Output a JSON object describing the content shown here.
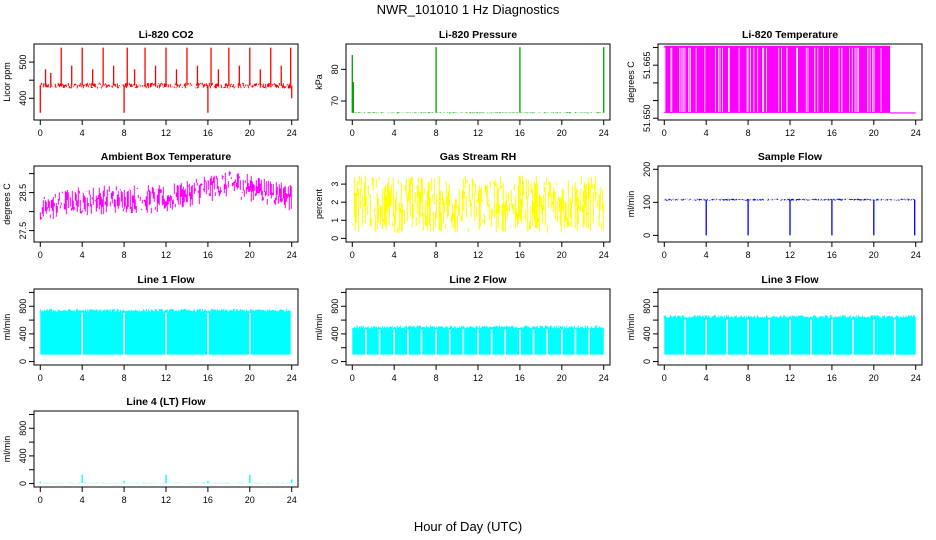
{
  "figure": {
    "title": "NWR_101010  1 Hz Diagnostics",
    "xlabel": "Hour of Day (UTC)"
  },
  "chart_data": [
    {
      "type": "line",
      "title": "Li-820 CO2",
      "ylabel": "Licor ppm",
      "color": "#ff0000",
      "xlim": [
        -0.6,
        24.6
      ],
      "ylim": [
        340,
        550
      ],
      "x_ticks": [
        0,
        4,
        8,
        12,
        16,
        20,
        24
      ],
      "y_ticks": [
        400,
        450,
        500
      ],
      "y_tick_labels": [
        "400",
        "",
        "500"
      ],
      "series": [
        {
          "baseline": 435,
          "noise": 8,
          "spikes": [
            [
              0.0,
              360
            ],
            [
              0.5,
              480
            ],
            [
              1.0,
              470
            ],
            [
              2.0,
              540
            ],
            [
              3.0,
              490
            ],
            [
              4.0,
              540
            ],
            [
              5.0,
              480
            ],
            [
              6.0,
              540
            ],
            [
              7.0,
              490
            ],
            [
              8.0,
              360
            ],
            [
              8.3,
              540
            ],
            [
              9.0,
              480
            ],
            [
              10.0,
              540
            ],
            [
              11.0,
              490
            ],
            [
              12.0,
              540
            ],
            [
              13.0,
              480
            ],
            [
              14.0,
              540
            ],
            [
              15.0,
              490
            ],
            [
              16.0,
              360
            ],
            [
              16.3,
              540
            ],
            [
              17.0,
              480
            ],
            [
              18.0,
              540
            ],
            [
              19.0,
              490
            ],
            [
              20.0,
              540
            ],
            [
              21.0,
              480
            ],
            [
              22.0,
              540
            ],
            [
              23.0,
              490
            ],
            [
              23.9,
              540
            ],
            [
              24.0,
              400
            ]
          ]
        }
      ]
    },
    {
      "type": "line",
      "title": "Li-820 Pressure",
      "ylabel": "kPa",
      "color": "#00a000",
      "xlim": [
        -0.6,
        24.6
      ],
      "ylim": [
        64,
        88
      ],
      "x_ticks": [
        0,
        4,
        8,
        12,
        16,
        20,
        24
      ],
      "y_ticks": [
        70,
        80
      ],
      "y_tick_labels": [
        "70",
        "80"
      ],
      "series": [
        {
          "baseline": 66.3,
          "noise": 0.15,
          "spikes": [
            [
              0.0,
              84.5
            ],
            [
              0.1,
              76
            ],
            [
              8.0,
              87
            ],
            [
              16.0,
              87
            ],
            [
              24.0,
              87
            ]
          ]
        }
      ]
    },
    {
      "type": "line",
      "title": "Li-820 Temperature",
      "ylabel": "degrees C",
      "color": "#ff00ff",
      "xlim": [
        -0.6,
        24.6
      ],
      "ylim": [
        51.6495,
        51.671
      ],
      "x_ticks": [
        0,
        4,
        8,
        12,
        16,
        20,
        24
      ],
      "y_ticks": [
        51.65,
        51.655,
        51.66,
        51.665,
        51.67
      ],
      "y_tick_labels": [
        "51.650",
        "",
        "",
        "51.665",
        ""
      ],
      "series": [
        {
          "levels": [
            51.6515,
            51.6705
          ],
          "mostly": "high",
          "start": 0.0,
          "end": 21.5
        }
      ]
    },
    {
      "type": "line",
      "title": "Ambient Box Temperature",
      "ylabel": "degrees C",
      "color": "#ff00ff",
      "xlim": [
        -0.6,
        24.6
      ],
      "ylim": [
        27.2,
        29.2
      ],
      "x_ticks": [
        0,
        4,
        8,
        12,
        16,
        20,
        24
      ],
      "y_ticks": [
        27.5,
        28.0,
        28.5,
        29.0
      ],
      "y_tick_labels": [
        "27.5",
        "",
        "28.5",
        ""
      ],
      "series": [
        {
          "trend": [
            [
              0,
              28.0
            ],
            [
              2,
              28.25
            ],
            [
              8,
              28.35
            ],
            [
              12,
              28.3
            ],
            [
              14,
              28.5
            ],
            [
              18,
              28.75
            ],
            [
              22,
              28.55
            ],
            [
              24,
              28.4
            ]
          ],
          "noise": 0.6
        }
      ]
    },
    {
      "type": "line",
      "title": "Gas Stream RH",
      "ylabel": "percent",
      "color": "#ffff00",
      "xlim": [
        -0.6,
        24.6
      ],
      "ylim": [
        -0.2,
        4.0
      ],
      "x_ticks": [
        0,
        4,
        8,
        12,
        16,
        20,
        24
      ],
      "y_ticks": [
        0,
        1,
        2,
        3
      ],
      "y_tick_labels": [
        "0",
        "1",
        "2",
        "3"
      ],
      "series": [
        {
          "baseline": 1.9,
          "noise": 1.6
        }
      ]
    },
    {
      "type": "line",
      "title": "Sample Flow",
      "ylabel": "ml/min",
      "color": "#0000ff",
      "xlim": [
        -0.6,
        24.6
      ],
      "ylim": [
        -20,
        210
      ],
      "x_ticks": [
        0,
        4,
        8,
        12,
        16,
        20,
        24
      ],
      "y_ticks": [
        0,
        100,
        200
      ],
      "y_tick_labels": [
        "0",
        "100",
        "200"
      ],
      "series": [
        {
          "baseline": 108,
          "noise": 3,
          "spikes": [
            [
              4.0,
              0
            ],
            [
              8.0,
              0
            ],
            [
              12.0,
              0
            ],
            [
              16.0,
              0
            ],
            [
              20.0,
              0
            ],
            [
              23.9,
              0
            ]
          ]
        }
      ]
    },
    {
      "type": "line",
      "title": "Line 1 Flow",
      "ylabel": "ml/min",
      "color": "#00ffff",
      "xlim": [
        -0.6,
        24.6
      ],
      "ylim": [
        -50,
        1050
      ],
      "x_ticks": [
        0,
        4,
        8,
        12,
        16,
        20,
        24
      ],
      "y_ticks": [
        0,
        200,
        400,
        600,
        800,
        1000
      ],
      "y_tick_labels": [
        "0",
        "",
        "400",
        "",
        "800",
        ""
      ],
      "series": [
        {
          "high": 720,
          "low": 100,
          "gaps": [
            4.0,
            8.0,
            12.0,
            16.0,
            20.0,
            24.0
          ],
          "end": 23.9
        }
      ]
    },
    {
      "type": "line",
      "title": "Line 2 Flow",
      "ylabel": "ml/min",
      "color": "#00ffff",
      "xlim": [
        -0.6,
        24.6
      ],
      "ylim": [
        -50,
        1050
      ],
      "x_ticks": [
        0,
        4,
        8,
        12,
        16,
        20,
        24
      ],
      "y_ticks": [
        0,
        200,
        400,
        600,
        800,
        1000
      ],
      "y_tick_labels": [
        "0",
        "",
        "400",
        "",
        "800",
        ""
      ],
      "series": [
        {
          "high": 480,
          "low": 100,
          "gaps": [
            1.3,
            2.6,
            4.0,
            5.3,
            6.6,
            8.0,
            9.3,
            10.6,
            12.0,
            13.3,
            14.6,
            16.0,
            17.3,
            18.6,
            20.0,
            21.3,
            22.6
          ],
          "end": 24.0
        }
      ]
    },
    {
      "type": "line",
      "title": "Line 3 Flow",
      "ylabel": "ml/min",
      "color": "#00ffff",
      "xlim": [
        -0.6,
        24.6
      ],
      "ylim": [
        -50,
        1050
      ],
      "x_ticks": [
        0,
        4,
        8,
        12,
        16,
        20,
        24
      ],
      "y_ticks": [
        0,
        200,
        400,
        600,
        800,
        1000
      ],
      "y_tick_labels": [
        "0",
        "",
        "400",
        "",
        "800",
        ""
      ],
      "series": [
        {
          "high": 630,
          "low": 100,
          "gaps": [
            2.0,
            4.0,
            6.0,
            8.0,
            10.0,
            12.0,
            14.0,
            16.0,
            18.0,
            20.0,
            22.0
          ],
          "end": 24.0
        }
      ]
    },
    {
      "type": "line",
      "title": "Line 4 (LT) Flow",
      "ylabel": "ml/min",
      "color": "#00ffff",
      "xlim": [
        -0.6,
        24.6
      ],
      "ylim": [
        -50,
        1050
      ],
      "x_ticks": [
        0,
        4,
        8,
        12,
        16,
        20,
        24
      ],
      "y_ticks": [
        0,
        200,
        400,
        600,
        800,
        1000
      ],
      "y_tick_labels": [
        "0",
        "",
        "400",
        "",
        "800",
        ""
      ],
      "series": [
        {
          "baseline": 8,
          "noise": 4,
          "spikes": [
            [
              0.0,
              30
            ],
            [
              4.0,
              130
            ],
            [
              8.0,
              40
            ],
            [
              12.0,
              130
            ],
            [
              16.0,
              40
            ],
            [
              20.0,
              130
            ],
            [
              24.0,
              60
            ]
          ]
        }
      ]
    }
  ]
}
